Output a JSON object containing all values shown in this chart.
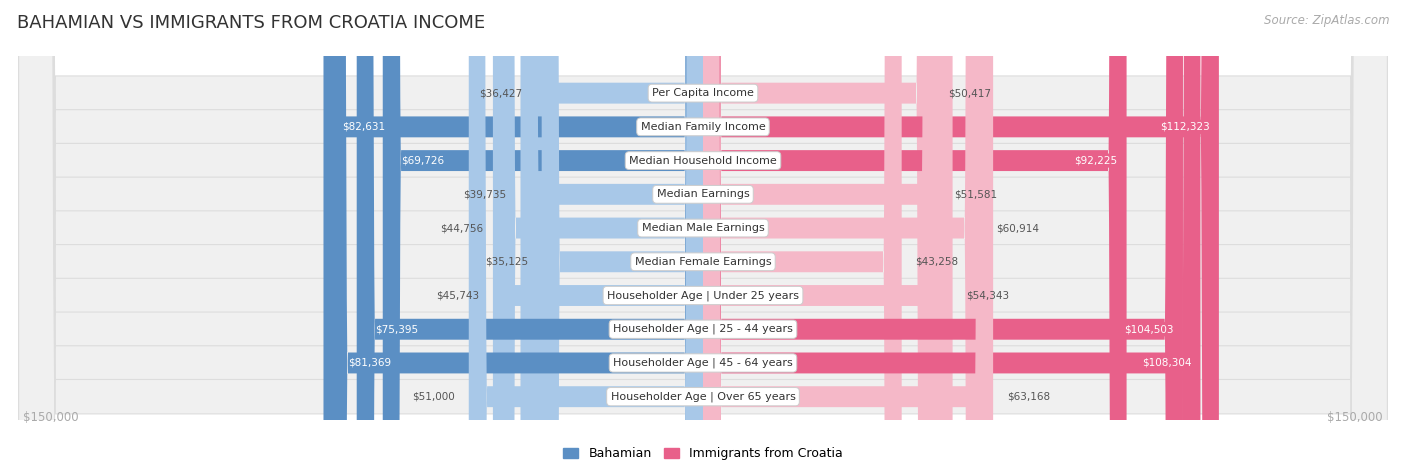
{
  "title": "BAHAMIAN VS IMMIGRANTS FROM CROATIA INCOME",
  "source": "Source: ZipAtlas.com",
  "categories": [
    "Per Capita Income",
    "Median Family Income",
    "Median Household Income",
    "Median Earnings",
    "Median Male Earnings",
    "Median Female Earnings",
    "Householder Age | Under 25 years",
    "Householder Age | 25 - 44 years",
    "Householder Age | 45 - 64 years",
    "Householder Age | Over 65 years"
  ],
  "bahamian": [
    36427,
    82631,
    69726,
    39735,
    44756,
    35125,
    45743,
    75395,
    81369,
    51000
  ],
  "croatia": [
    50417,
    112323,
    92225,
    51581,
    60914,
    43258,
    54343,
    104503,
    108304,
    63168
  ],
  "bahamian_dark": [
    false,
    true,
    true,
    false,
    false,
    false,
    false,
    true,
    true,
    false
  ],
  "croatia_dark": [
    false,
    true,
    true,
    false,
    false,
    false,
    false,
    true,
    true,
    false
  ],
  "max_val": 150000,
  "color_bahamian_light": "#a8c8e8",
  "color_bahamian_dark": "#5b8fc4",
  "color_croatia_light": "#f5b8c8",
  "color_croatia_dark": "#e8608a",
  "bg_row": "#f0f0f0",
  "row_edge": "#dddddd",
  "value_label_color": "#555555",
  "axis_label_color": "#aaaaaa",
  "title_color": "#333333",
  "source_color": "#aaaaaa",
  "legend_label_bah": "Bahamian",
  "legend_label_cro": "Immigrants from Croatia"
}
